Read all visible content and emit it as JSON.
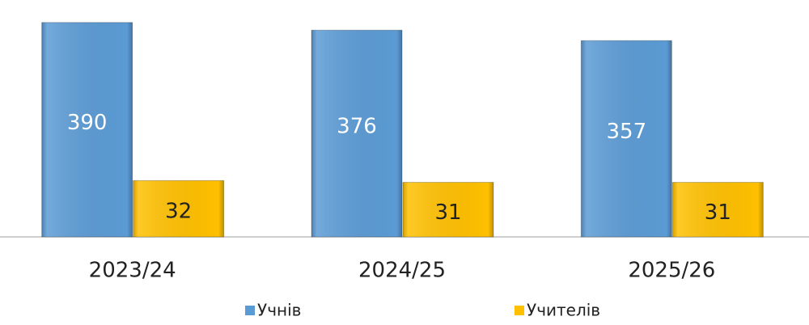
{
  "chart_data": {
    "type": "bar",
    "categories": [
      "2023/24",
      "2024/25",
      "2025/26"
    ],
    "series": [
      {
        "name": "Учнів",
        "color": "#5b9bd5",
        "values": [
          390,
          376,
          357
        ]
      },
      {
        "name": "Учителів",
        "color": "#ffc000",
        "values": [
          32,
          31,
          31
        ],
        "axis": "y2"
      }
    ],
    "ylim": [
      0,
      400
    ],
    "y2lim": [
      0,
      125
    ],
    "grid": false,
    "legend": "bottom"
  }
}
